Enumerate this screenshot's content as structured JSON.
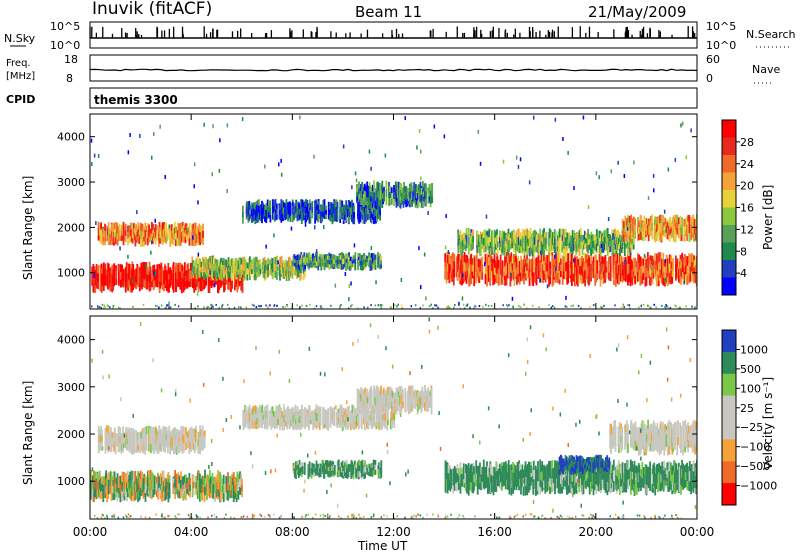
{
  "header": {
    "title": "Inuvik (fitACF)",
    "beam": "Beam 11",
    "date": "21/May/2009"
  },
  "top_panels": {
    "nsky_label": "N.Sky",
    "nsky_ticks": [
      "10^5",
      "10^0"
    ],
    "nsearch_label": "N.Search",
    "freq_label_1": "Freq.",
    "freq_label_2": "[MHz]",
    "freq_ticks": [
      "18",
      "8"
    ],
    "nave_label": "Nave",
    "nave_ticks": [
      "60",
      "0"
    ],
    "cpid_label": "CPID",
    "cpid_value": "themis 3300"
  },
  "chart_data": [
    {
      "type": "heatmap",
      "name": "power",
      "ylabel": "Slant Range [km]",
      "ylim": [
        200,
        4500
      ],
      "yticks": [
        "1000",
        "2000",
        "3000",
        "4000"
      ],
      "xlim_hours": [
        0,
        24
      ],
      "colorbar_label": "Power [dB]",
      "colorbar_ticks": [
        "4",
        "8",
        "12",
        "16",
        "20",
        "24",
        "28"
      ],
      "colors": [
        "#0000ff",
        "#2040c0",
        "#1f8a4c",
        "#59a15a",
        "#8cc83c",
        "#e8d23a",
        "#f6a23a",
        "#f06a2a",
        "#e82a1e",
        "#ff0000"
      ],
      "echo_bands": [
        {
          "t": [
            0.0,
            6.0
          ],
          "r": [
            650,
            1150
          ],
          "level": 0.95
        },
        {
          "t": [
            0.3,
            4.5
          ],
          "r": [
            1650,
            2050
          ],
          "level": 0.7
        },
        {
          "t": [
            4.0,
            8.5
          ],
          "r": [
            900,
            1300
          ],
          "level": 0.45
        },
        {
          "t": [
            6.0,
            11.5
          ],
          "r": [
            2150,
            2550
          ],
          "level": 0.15
        },
        {
          "t": [
            8.0,
            11.5
          ],
          "r": [
            1100,
            1400
          ],
          "level": 0.3
        },
        {
          "t": [
            10.5,
            13.5
          ],
          "r": [
            2500,
            2950
          ],
          "level": 0.25
        },
        {
          "t": [
            14.0,
            24.0
          ],
          "r": [
            800,
            1350
          ],
          "level": 0.8
        },
        {
          "t": [
            14.5,
            21.5
          ],
          "r": [
            1450,
            1900
          ],
          "level": 0.4
        },
        {
          "t": [
            21.0,
            24.0
          ],
          "r": [
            1750,
            2200
          ],
          "level": 0.65
        }
      ]
    },
    {
      "type": "heatmap",
      "name": "velocity",
      "ylabel": "Slant Range [km]",
      "ylim": [
        200,
        4500
      ],
      "yticks": [
        "1000",
        "2000",
        "3000",
        "4000"
      ],
      "xlim_hours": [
        0,
        24
      ],
      "xticks": [
        "00:00",
        "04:00",
        "08:00",
        "12:00",
        "16:00",
        "20:00",
        "00:00"
      ],
      "xlabel": "Time UT",
      "colorbar_label": "Velocity [m s⁻¹]",
      "colorbar_ticks": [
        "1000",
        "500",
        "100",
        "25",
        "−25",
        "−100",
        "−500",
        "−1000"
      ],
      "colors": [
        "#ff0000",
        "#f06a2a",
        "#f6a23a",
        "#c8c8c0",
        "#c8c8c0",
        "#7ac84a",
        "#2f8a5a",
        "#2040c0"
      ],
      "echo_bands": [
        {
          "t": [
            0.0,
            6.0
          ],
          "r": [
            650,
            1150
          ],
          "v": "mixed-green-orange"
        },
        {
          "t": [
            0.3,
            4.5
          ],
          "r": [
            1650,
            2100
          ],
          "v": "grey"
        },
        {
          "t": [
            6.0,
            12.0
          ],
          "r": [
            2150,
            2550
          ],
          "v": "grey"
        },
        {
          "t": [
            8.0,
            11.5
          ],
          "r": [
            1100,
            1400
          ],
          "v": "green"
        },
        {
          "t": [
            10.5,
            13.5
          ],
          "r": [
            2500,
            2950
          ],
          "v": "grey"
        },
        {
          "t": [
            14.0,
            24.0
          ],
          "r": [
            800,
            1350
          ],
          "v": "green"
        },
        {
          "t": [
            18.5,
            20.5
          ],
          "r": [
            1200,
            1500
          ],
          "v": "blue"
        },
        {
          "t": [
            20.5,
            24.0
          ],
          "r": [
            1650,
            2200
          ],
          "v": "grey"
        }
      ]
    }
  ]
}
